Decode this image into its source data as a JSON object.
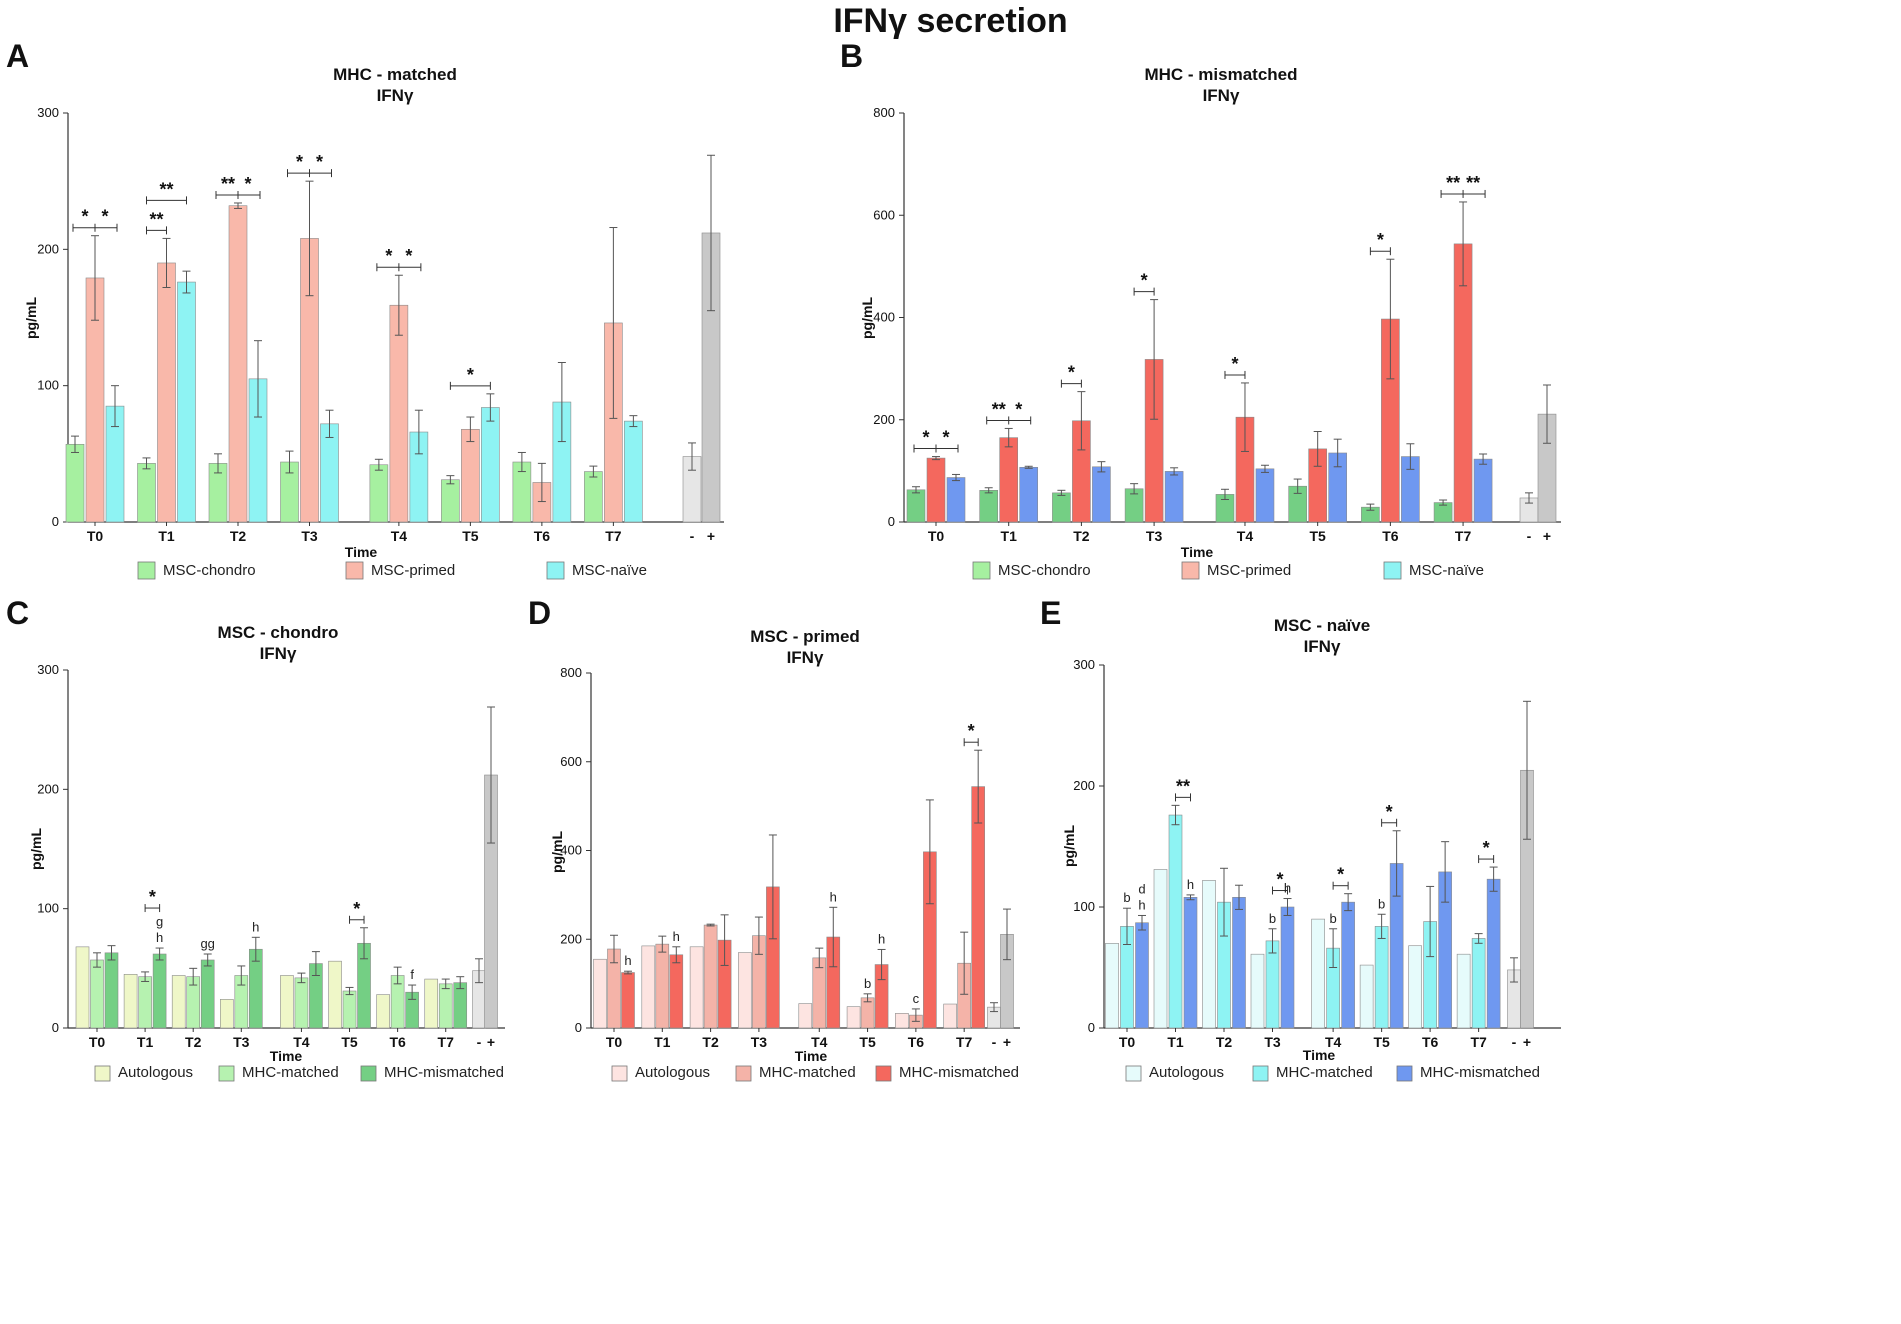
{
  "figure_title": "IFNγ secretion",
  "colors": {
    "chondro": "#a6f0a0",
    "primed": "#f9b8aa",
    "naive": "#8ef3f3",
    "neg_ctrl": "#e6e6e6",
    "pos_ctrl": "#c8c8c8",
    "mismatched_red": "#f4685e",
    "mismatched_blue": "#6f98f0",
    "mismatched_green": "#74cf84",
    "auto_green": "#eff7c8",
    "auto_red": "#fde4e1",
    "auto_cyan": "#e6fbfb",
    "matched_green": "#b6f2b0"
  },
  "chart_data": [
    {
      "panel": "A",
      "type": "bar",
      "title": "MHC - matched",
      "subtitle": "IFNγ",
      "xlabel": "Time",
      "ylabel": "pg/mL",
      "ylim": [
        0,
        300
      ],
      "yticks": [
        0,
        100,
        200,
        300
      ],
      "categories": [
        "T0",
        "T1",
        "T2",
        "T3",
        "T4",
        "T5",
        "T6",
        "T7"
      ],
      "series": [
        {
          "name": "MSC-chondro",
          "color": "#a6f0a0",
          "values": [
            57,
            43,
            43,
            44,
            42,
            31,
            44,
            37
          ],
          "errors": [
            6,
            4,
            7,
            8,
            4,
            3,
            7,
            4
          ]
        },
        {
          "name": "MSC-primed",
          "color": "#f9b8aa",
          "values": [
            179,
            190,
            232,
            208,
            159,
            68,
            29,
            146
          ],
          "errors": [
            31,
            18,
            2,
            42,
            22,
            9,
            14,
            70
          ]
        },
        {
          "name": "MSC-naïve",
          "color": "#8ef3f3",
          "values": [
            85,
            176,
            105,
            72,
            66,
            84,
            88,
            74
          ],
          "errors": [
            15,
            8,
            28,
            10,
            16,
            10,
            29,
            4
          ]
        }
      ],
      "controls": {
        "labels": [
          "-",
          "+"
        ],
        "values": [
          48,
          212
        ],
        "errors": [
          10,
          57
        ],
        "colors": [
          "#e6e6e6",
          "#c8c8c8"
        ]
      },
      "significance": [
        {
          "cat": 0,
          "type": "pair",
          "labels": [
            "*",
            "*"
          ]
        },
        {
          "cat": 1,
          "type": "span13",
          "label": "**"
        },
        {
          "cat": 1,
          "type": "single12",
          "label": "**"
        },
        {
          "cat": 2,
          "type": "pair",
          "labels": [
            "**",
            "*"
          ]
        },
        {
          "cat": 3,
          "type": "pair",
          "labels": [
            "*",
            "*"
          ]
        },
        {
          "cat": 4,
          "type": "pair",
          "labels": [
            "*",
            "*"
          ]
        },
        {
          "cat": 5,
          "type": "span13",
          "label": "*"
        }
      ],
      "legend": [
        "MSC-chondro",
        "MSC-primed",
        "MSC-naïve"
      ],
      "legend_colors": [
        "#a6f0a0",
        "#f9b8aa",
        "#8ef3f3"
      ]
    },
    {
      "panel": "B",
      "type": "bar",
      "title": "MHC - mismatched",
      "subtitle": "IFNγ",
      "xlabel": "Time",
      "ylabel": "pg/mL",
      "ylim": [
        0,
        800
      ],
      "yticks": [
        0,
        200,
        400,
        600,
        800
      ],
      "categories": [
        "T0",
        "T1",
        "T2",
        "T3",
        "T4",
        "T5",
        "T6",
        "T7"
      ],
      "series": [
        {
          "name": "MSC-chondro",
          "color": "#74cf84",
          "values": [
            63,
            62,
            57,
            65,
            54,
            70,
            29,
            38
          ],
          "errors": [
            6,
            5,
            5,
            10,
            10,
            14,
            6,
            5
          ]
        },
        {
          "name": "MSC-primed",
          "color": "#f4685e",
          "values": [
            125,
            165,
            198,
            318,
            205,
            143,
            397,
            544
          ],
          "errors": [
            3,
            18,
            57,
            117,
            67,
            34,
            117,
            82
          ]
        },
        {
          "name": "MSC-naïve",
          "color": "#6f98f0",
          "values": [
            87,
            107,
            108,
            99,
            104,
            135,
            128,
            123
          ],
          "errors": [
            6,
            2,
            10,
            7,
            7,
            27,
            25,
            10
          ]
        }
      ],
      "controls": {
        "labels": [
          "-",
          "+"
        ],
        "values": [
          47,
          211
        ],
        "errors": [
          10,
          57
        ],
        "colors": [
          "#e6e6e6",
          "#c8c8c8"
        ]
      },
      "significance": [
        {
          "cat": 0,
          "type": "pair",
          "labels": [
            "*",
            "*"
          ]
        },
        {
          "cat": 1,
          "type": "pair",
          "labels": [
            "**",
            "*"
          ]
        },
        {
          "cat": 2,
          "type": "single12",
          "label": "*"
        },
        {
          "cat": 3,
          "type": "single12",
          "label": "*"
        },
        {
          "cat": 4,
          "type": "single12",
          "label": "*"
        },
        {
          "cat": 6,
          "type": "single12",
          "label": "*"
        },
        {
          "cat": 7,
          "type": "pair",
          "labels": [
            "**",
            "**"
          ]
        }
      ],
      "legend": [
        "MSC-chondro",
        "MSC-primed",
        "MSC-naïve"
      ],
      "legend_colors": [
        "#a6f0a0",
        "#f9b8aa",
        "#8ef3f3"
      ]
    },
    {
      "panel": "C",
      "type": "bar",
      "title": "MSC - chondro",
      "subtitle": "IFNγ",
      "xlabel": "Time",
      "ylabel": "pg/mL",
      "ylim": [
        0,
        300
      ],
      "yticks": [
        0,
        100,
        200,
        300
      ],
      "categories": [
        "T0",
        "T1",
        "T2",
        "T3",
        "T4",
        "T5",
        "T6",
        "T7"
      ],
      "series": [
        {
          "name": "Autologous",
          "color": "#eff7c8",
          "values": [
            68,
            45,
            44,
            24,
            44,
            56,
            28,
            41
          ],
          "errors": [
            0,
            0,
            0,
            0,
            0,
            0,
            0,
            0
          ]
        },
        {
          "name": "MHC-matched",
          "color": "#b6f2b0",
          "values": [
            57,
            43,
            43,
            44,
            42,
            31,
            44,
            37
          ],
          "errors": [
            6,
            4,
            7,
            8,
            4,
            3,
            7,
            4
          ]
        },
        {
          "name": "MHC-mismatched",
          "color": "#74cf84",
          "values": [
            63,
            62,
            57,
            66,
            54,
            71,
            30,
            38
          ],
          "errors": [
            6,
            5,
            5,
            10,
            10,
            13,
            6,
            5
          ]
        }
      ],
      "controls": {
        "labels": [
          "-",
          "+"
        ],
        "values": [
          48,
          212
        ],
        "errors": [
          10,
          57
        ],
        "colors": [
          "#e6e6e6",
          "#c8c8c8"
        ]
      },
      "significance": [
        {
          "cat": 1,
          "type": "single23",
          "label": "*"
        },
        {
          "cat": 5,
          "type": "single23",
          "label": "*"
        }
      ],
      "annotations": [
        {
          "cat": 1,
          "series": 2,
          "lines": [
            "g",
            "h"
          ]
        },
        {
          "cat": 2,
          "series": 2,
          "lines": [
            "gg"
          ]
        },
        {
          "cat": 3,
          "series": 2,
          "lines": [
            "h"
          ]
        },
        {
          "cat": 6,
          "series": 2,
          "lines": [
            "f"
          ]
        }
      ],
      "legend": [
        "Autologous",
        "MHC-matched",
        "MHC-mismatched"
      ],
      "legend_colors": [
        "#eff7c8",
        "#b6f2b0",
        "#74cf84"
      ]
    },
    {
      "panel": "D",
      "type": "bar",
      "title": "MSC - primed",
      "subtitle": "IFNγ",
      "xlabel": "Time",
      "ylabel": "pg/mL",
      "ylim": [
        0,
        800
      ],
      "yticks": [
        0,
        200,
        400,
        600,
        800
      ],
      "categories": [
        "T0",
        "T1",
        "T2",
        "T3",
        "T4",
        "T5",
        "T6",
        "T7"
      ],
      "series": [
        {
          "name": "Autologous",
          "color": "#fde4e1",
          "values": [
            155,
            185,
            183,
            170,
            55,
            48,
            33,
            54
          ],
          "errors": [
            0,
            0,
            0,
            0,
            0,
            0,
            0,
            0
          ]
        },
        {
          "name": "MHC-matched",
          "color": "#f4b3a8",
          "values": [
            178,
            189,
            232,
            208,
            158,
            68,
            29,
            146
          ],
          "errors": [
            31,
            18,
            2,
            42,
            22,
            9,
            14,
            70
          ]
        },
        {
          "name": "MHC-mismatched",
          "color": "#f4685e",
          "values": [
            125,
            165,
            198,
            318,
            205,
            143,
            397,
            544
          ],
          "errors": [
            3,
            18,
            57,
            117,
            67,
            34,
            117,
            82
          ]
        }
      ],
      "controls": {
        "labels": [
          "-",
          "+"
        ],
        "values": [
          47,
          211
        ],
        "errors": [
          10,
          57
        ],
        "colors": [
          "#e6e6e6",
          "#c8c8c8"
        ]
      },
      "significance": [
        {
          "cat": 7,
          "type": "single23",
          "label": "*"
        }
      ],
      "annotations": [
        {
          "cat": 0,
          "series": 2,
          "lines": [
            "h"
          ]
        },
        {
          "cat": 1,
          "series": 2,
          "lines": [
            "h"
          ]
        },
        {
          "cat": 4,
          "series": 2,
          "lines": [
            "h"
          ]
        },
        {
          "cat": 5,
          "series": 2,
          "lines": [
            "h"
          ]
        },
        {
          "cat": 5,
          "series": 1,
          "lines": [
            "b"
          ]
        },
        {
          "cat": 6,
          "series": 1,
          "lines": [
            "c"
          ]
        }
      ],
      "legend": [
        "Autologous",
        "MHC-matched",
        "MHC-mismatched"
      ],
      "legend_colors": [
        "#fde4e1",
        "#f4b3a8",
        "#f4685e"
      ]
    },
    {
      "panel": "E",
      "type": "bar",
      "title": "MSC - naïve",
      "subtitle": "IFNγ",
      "xlabel": "Time",
      "ylabel": "pg/mL",
      "ylim": [
        0,
        300
      ],
      "yticks": [
        0,
        100,
        200,
        300
      ],
      "categories": [
        "T0",
        "T1",
        "T2",
        "T3",
        "T4",
        "T5",
        "T6",
        "T7"
      ],
      "series": [
        {
          "name": "Autologous",
          "color": "#e6fbfb",
          "values": [
            70,
            131,
            122,
            61,
            90,
            52,
            68,
            61
          ],
          "errors": [
            0,
            0,
            0,
            0,
            0,
            0,
            0,
            0
          ]
        },
        {
          "name": "MHC-matched",
          "color": "#8ef3f3",
          "values": [
            84,
            176,
            104,
            72,
            66,
            84,
            88,
            74
          ],
          "errors": [
            15,
            8,
            28,
            10,
            16,
            10,
            29,
            4
          ]
        },
        {
          "name": "MHC-mismatched",
          "color": "#6f98f0",
          "values": [
            87,
            108,
            108,
            100,
            104,
            136,
            129,
            123
          ],
          "errors": [
            6,
            2,
            10,
            7,
            7,
            27,
            25,
            10
          ]
        }
      ],
      "controls": {
        "labels": [
          "-",
          "+"
        ],
        "values": [
          48,
          213
        ],
        "errors": [
          10,
          57
        ],
        "colors": [
          "#e6e6e6",
          "#c8c8c8"
        ]
      },
      "significance": [
        {
          "cat": 1,
          "type": "single12",
          "label": "**"
        },
        {
          "cat": 3,
          "type": "single12",
          "label": "*"
        },
        {
          "cat": 4,
          "type": "single12",
          "label": "*"
        },
        {
          "cat": 5,
          "type": "single12",
          "label": "*"
        },
        {
          "cat": 7,
          "type": "single12",
          "label": "*"
        }
      ],
      "annotations": [
        {
          "cat": 0,
          "series": 1,
          "lines": [
            "b"
          ]
        },
        {
          "cat": 0,
          "series": 2,
          "lines": [
            "d",
            "h"
          ]
        },
        {
          "cat": 1,
          "series": 2,
          "lines": [
            "h"
          ]
        },
        {
          "cat": 3,
          "series": 1,
          "lines": [
            "b"
          ]
        },
        {
          "cat": 3,
          "series": 2,
          "lines": [
            "h"
          ]
        },
        {
          "cat": 4,
          "series": 1,
          "lines": [
            "b"
          ]
        },
        {
          "cat": 5,
          "series": 1,
          "lines": [
            "b"
          ]
        }
      ],
      "legend": [
        "Autologous",
        "MHC-matched",
        "MHC-mismatched"
      ],
      "legend_colors": [
        "#e6fbfb",
        "#8ef3f3",
        "#6f98f0"
      ]
    }
  ]
}
